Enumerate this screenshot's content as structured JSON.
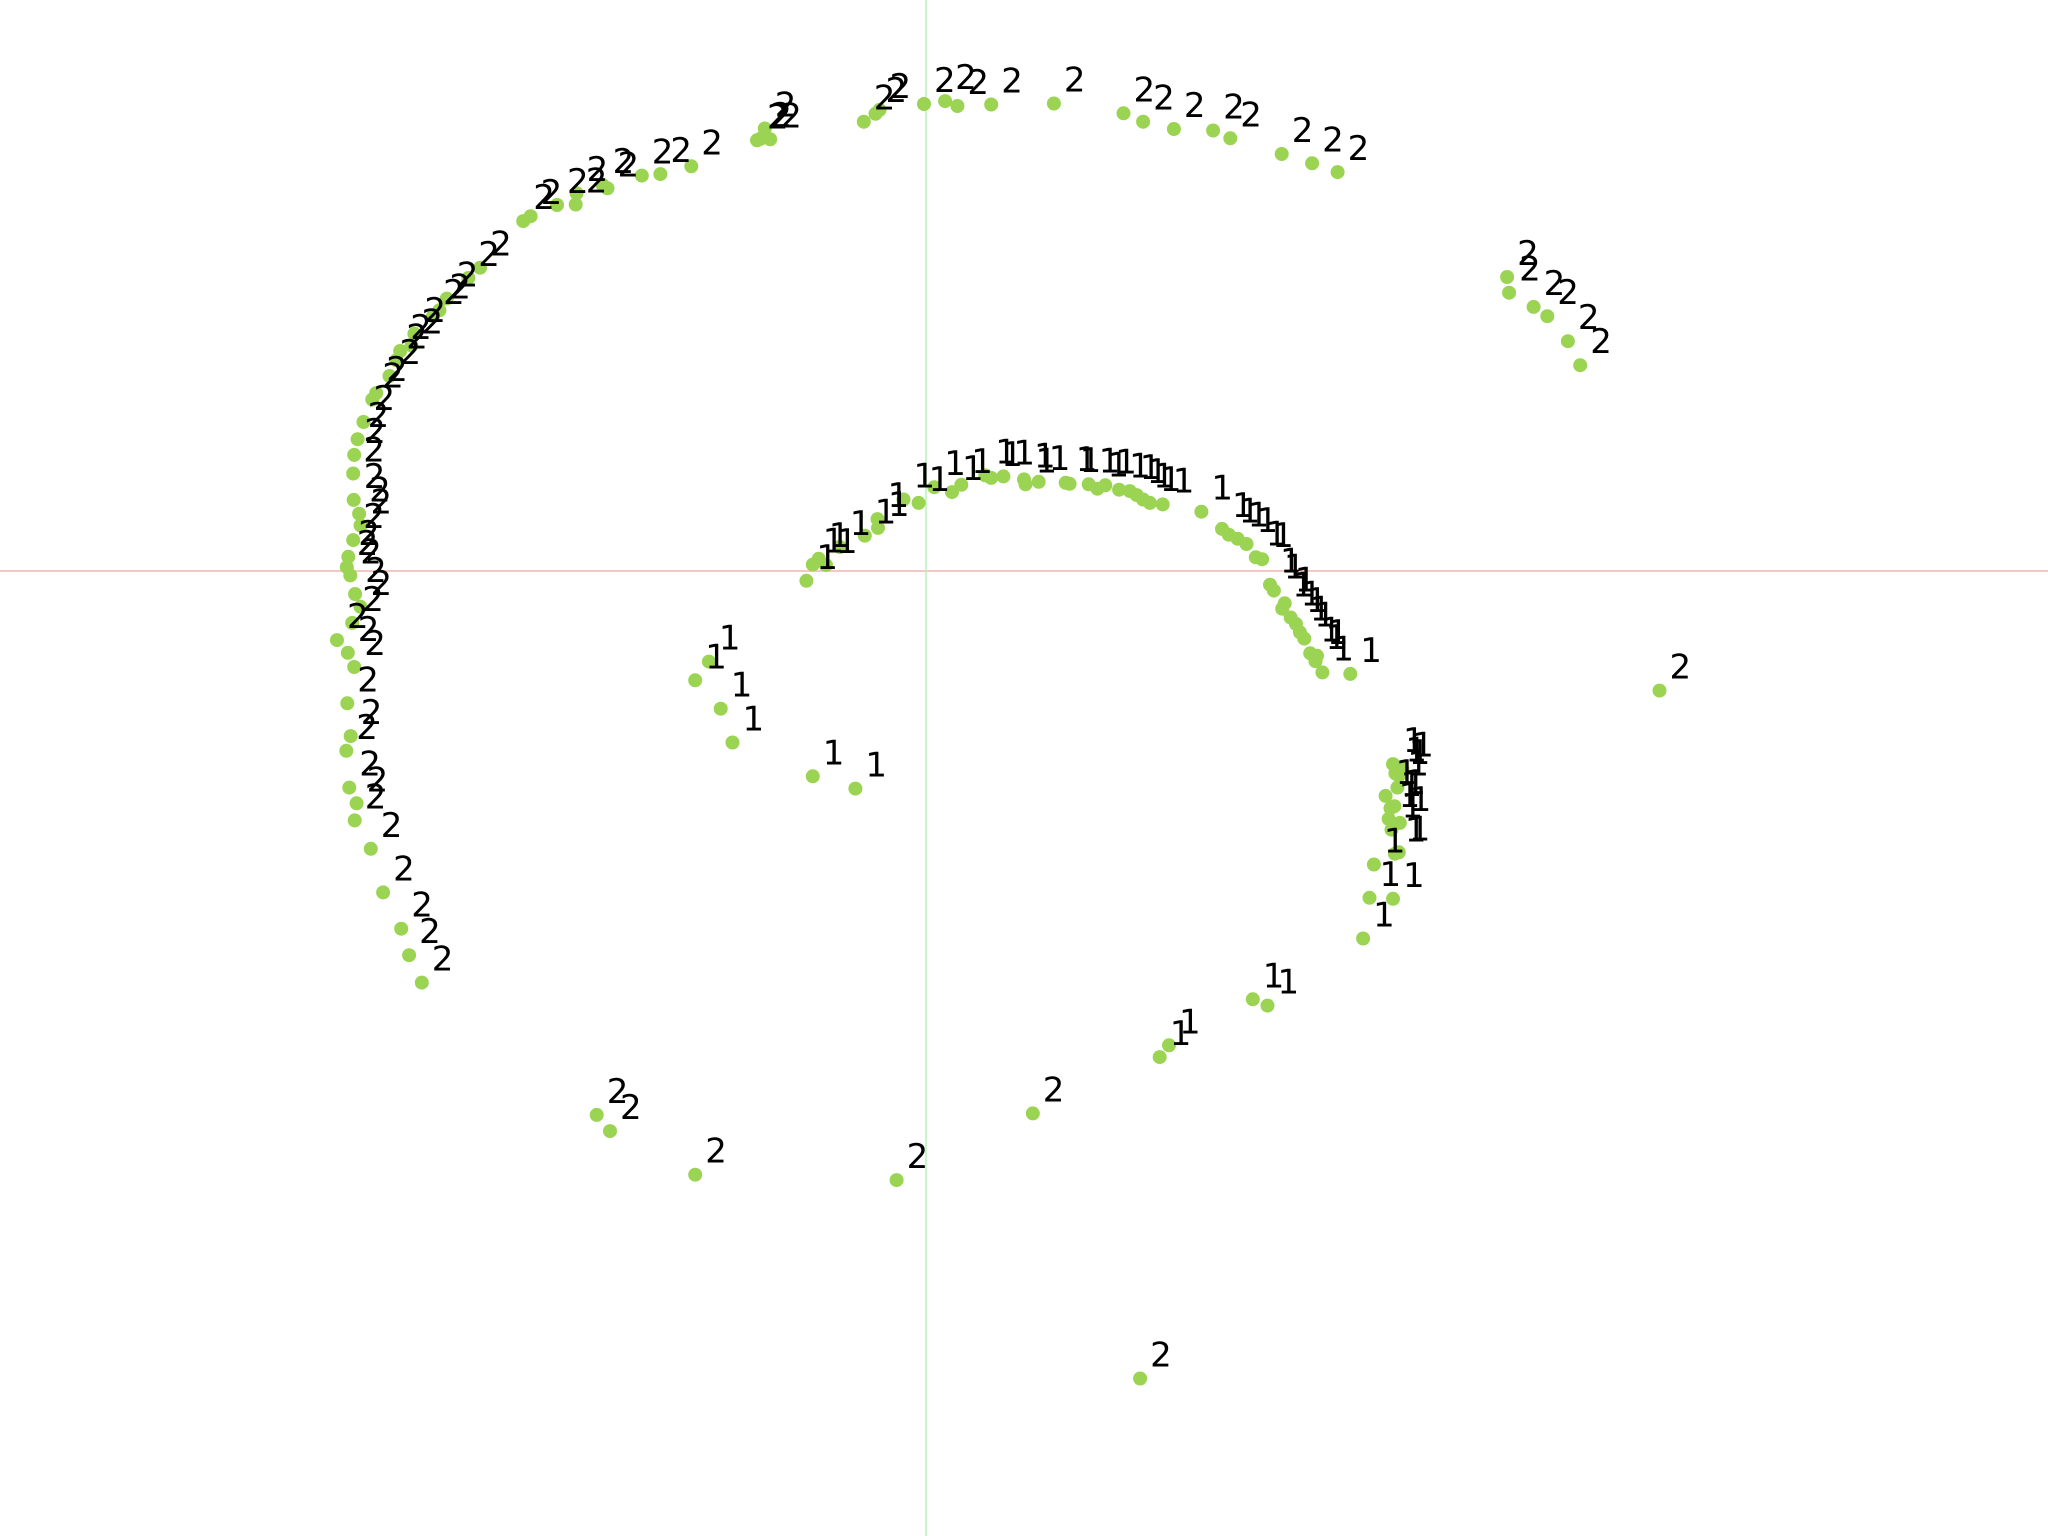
{
  "chart_data": {
    "type": "scatter",
    "xlim": [
      -2.0,
      2.0
    ],
    "ylim": [
      -2.0,
      1.0
    ],
    "grid": false,
    "legend": "none",
    "colors": {
      "point": "#9ad452",
      "label": "#000000",
      "axis_x": "#f4b4ae",
      "axis_y": "#b8f0b8"
    },
    "series": [
      {
        "label": "1",
        "points": [
          [
            -0.244,
            -0.02
          ],
          [
            -0.231,
            0.013
          ],
          [
            -0.219,
            0.025
          ],
          [
            -0.204,
            0.012
          ],
          [
            -0.176,
            0.049
          ],
          [
            -0.125,
            0.072
          ],
          [
            -0.099,
            0.106
          ],
          [
            -0.098,
            0.088
          ],
          [
            -0.046,
            0.146
          ],
          [
            -0.015,
            0.139
          ],
          [
            0.017,
            0.171
          ],
          [
            0.053,
            0.161
          ],
          [
            0.072,
            0.176
          ],
          [
            0.121,
            0.195
          ],
          [
            0.133,
            0.19
          ],
          [
            0.158,
            0.193
          ],
          [
            0.2,
            0.187
          ],
          [
            0.203,
            0.177
          ],
          [
            0.23,
            0.182
          ],
          [
            0.285,
            0.18
          ],
          [
            0.293,
            0.178
          ],
          [
            0.332,
            0.177
          ],
          [
            0.35,
            0.168
          ],
          [
            0.366,
            0.175
          ],
          [
            0.394,
            0.166
          ],
          [
            0.416,
            0.163
          ],
          [
            0.43,
            0.155
          ],
          [
            0.443,
            0.146
          ],
          [
            0.457,
            0.139
          ],
          [
            0.483,
            0.136
          ],
          [
            0.562,
            0.121
          ],
          [
            0.604,
            0.086
          ],
          [
            0.618,
            0.074
          ],
          [
            0.636,
            0.066
          ],
          [
            0.654,
            0.055
          ],
          [
            0.673,
            0.028
          ],
          [
            0.686,
            0.024
          ],
          [
            0.702,
            -0.028
          ],
          [
            0.71,
            -0.04
          ],
          [
            0.727,
            -0.077
          ],
          [
            0.732,
            -0.066
          ],
          [
            0.744,
            -0.095
          ],
          [
            0.755,
            -0.108
          ],
          [
            0.763,
            -0.125
          ],
          [
            0.772,
            -0.138
          ],
          [
            0.784,
            -0.168
          ],
          [
            0.795,
            -0.184
          ],
          [
            0.798,
            -0.173
          ],
          [
            0.809,
            -0.207
          ],
          [
            0.866,
            -0.21
          ],
          [
            0.953,
            -0.394
          ],
          [
            0.958,
            -0.413
          ],
          [
            0.965,
            -0.418
          ],
          [
            0.972,
            -0.403
          ],
          [
            0.962,
            -0.442
          ],
          [
            0.938,
            -0.459
          ],
          [
            0.944,
            -0.506
          ],
          [
            0.956,
            -0.48
          ],
          [
            0.948,
            -0.484
          ],
          [
            0.95,
            -0.528
          ],
          [
            0.967,
            -0.514
          ],
          [
            0.957,
            -0.577
          ],
          [
            0.965,
            -0.574
          ],
          [
            0.905,
            -0.667
          ],
          [
            0.953,
            -0.669
          ],
          [
            0.914,
            -0.599
          ],
          [
            0.892,
            -0.75
          ],
          [
            -0.471,
            -0.223
          ],
          [
            -0.443,
            -0.185
          ],
          [
            -0.419,
            -0.281
          ],
          [
            -0.395,
            -0.35
          ],
          [
            -0.231,
            -0.419
          ],
          [
            -0.144,
            -0.444
          ],
          [
            0.667,
            -0.874
          ],
          [
            0.697,
            -0.887
          ],
          [
            0.496,
            -0.968
          ],
          [
            0.477,
            -0.992
          ]
        ]
      },
      {
        "label": "2",
        "points": [
          [
            -0.004,
            0.953
          ],
          [
            0.039,
            0.959
          ],
          [
            0.064,
            0.949
          ],
          [
            0.133,
            0.952
          ],
          [
            0.261,
            0.954
          ],
          [
            0.403,
            0.934
          ],
          [
            0.443,
            0.917
          ],
          [
            0.506,
            0.902
          ],
          [
            0.586,
            0.899
          ],
          [
            0.621,
            0.883
          ],
          [
            0.726,
            0.851
          ],
          [
            0.788,
            0.832
          ],
          [
            0.84,
            0.814
          ],
          [
            -0.127,
            0.917
          ],
          [
            -0.103,
            0.933
          ],
          [
            -0.095,
            0.941
          ],
          [
            -0.345,
            0.879
          ],
          [
            -0.338,
            0.882
          ],
          [
            -0.318,
            0.881
          ],
          [
            -0.329,
            0.903
          ],
          [
            -0.479,
            0.826
          ],
          [
            -0.542,
            0.81
          ],
          [
            -0.58,
            0.807
          ],
          [
            -0.65,
            0.781
          ],
          [
            -0.66,
            0.788
          ],
          [
            -0.713,
            0.771
          ],
          [
            -0.715,
            0.748
          ],
          [
            -0.753,
            0.747
          ],
          [
            -0.807,
            0.724
          ],
          [
            -0.822,
            0.714
          ],
          [
            -0.91,
            0.619
          ],
          [
            -0.934,
            0.598
          ],
          [
            -0.978,
            0.556
          ],
          [
            -0.993,
            0.532
          ],
          [
            -1.006,
            0.52
          ],
          [
            -1.044,
            0.484
          ],
          [
            -1.05,
            0.46
          ],
          [
            -1.073,
            0.449
          ],
          [
            -1.081,
            0.43
          ],
          [
            -1.095,
            0.398
          ],
          [
            -1.122,
            0.363
          ],
          [
            -1.13,
            0.35
          ],
          [
            -1.148,
            0.304
          ],
          [
            -1.16,
            0.269
          ],
          [
            -1.167,
            0.237
          ],
          [
            -1.169,
            0.199
          ],
          [
            -1.168,
            0.145
          ],
          [
            -1.157,
            0.117
          ],
          [
            -1.154,
            0.093
          ],
          [
            -1.169,
            0.063
          ],
          [
            -1.179,
            0.029
          ],
          [
            -1.182,
            0.008
          ],
          [
            -1.175,
            -0.009
          ],
          [
            -1.165,
            -0.047
          ],
          [
            -1.154,
            -0.073
          ],
          [
            -1.171,
            -0.106
          ],
          [
            -1.202,
            -0.141
          ],
          [
            -1.18,
            -0.167
          ],
          [
            -1.167,
            -0.196
          ],
          [
            -1.181,
            -0.27
          ],
          [
            -1.174,
            -0.337
          ],
          [
            -1.183,
            -0.367
          ],
          [
            -1.177,
            -0.442
          ],
          [
            -1.162,
            -0.474
          ],
          [
            -1.166,
            -0.509
          ],
          [
            -1.133,
            -0.567
          ],
          [
            -1.108,
            -0.656
          ],
          [
            -1.071,
            -0.73
          ],
          [
            -1.055,
            -0.784
          ],
          [
            -1.029,
            -0.84
          ],
          [
            1.186,
            0.6
          ],
          [
            1.19,
            0.568
          ],
          [
            1.24,
            0.539
          ],
          [
            1.268,
            0.52
          ],
          [
            1.31,
            0.469
          ],
          [
            1.335,
            0.42
          ],
          [
            1.497,
            -0.244
          ],
          [
            -0.672,
            -1.11
          ],
          [
            -0.645,
            -1.143
          ],
          [
            -0.471,
            -1.232
          ],
          [
            -0.06,
            -1.243
          ],
          [
            0.218,
            -1.107
          ],
          [
            0.437,
            -1.648
          ]
        ]
      }
    ]
  }
}
